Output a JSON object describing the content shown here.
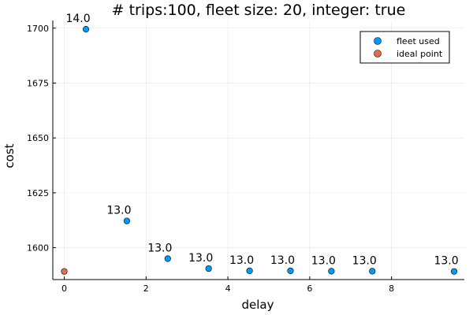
{
  "chart_data": {
    "type": "scatter",
    "title": "# trips:100, fleet size: 20, integer: true",
    "xlabel": "delay",
    "ylabel": "cost",
    "xlim": [
      -0.28,
      9.78
    ],
    "ylim": [
      1585.5,
      1703.5
    ],
    "xticks": [
      0,
      2,
      4,
      6,
      8
    ],
    "yticks": [
      1600,
      1625,
      1650,
      1675,
      1700
    ],
    "xtick_labels": [
      "0",
      "2",
      "4",
      "6",
      "8"
    ],
    "ytick_labels": [
      "1600",
      "1625",
      "1650",
      "1675",
      "1700"
    ],
    "grid": true,
    "legend": "top-right",
    "series": [
      {
        "name": "fleet used",
        "color": "#009af9",
        "x": [
          0.53,
          1.53,
          2.53,
          3.53,
          4.53,
          5.53,
          6.53,
          7.53,
          9.53
        ],
        "y": [
          1699.5,
          1612.2,
          1595.0,
          1590.5,
          1589.5,
          1589.5,
          1589.3,
          1589.3,
          1589.2
        ],
        "labels": [
          "14.0",
          "13.0",
          "13.0",
          "13.0",
          "13.0",
          "13.0",
          "13.0",
          "13.0",
          "13.0"
        ]
      },
      {
        "name": "ideal point",
        "color": "#e26f46",
        "x": [
          0
        ],
        "y": [
          1589.2
        ],
        "labels": []
      }
    ]
  }
}
